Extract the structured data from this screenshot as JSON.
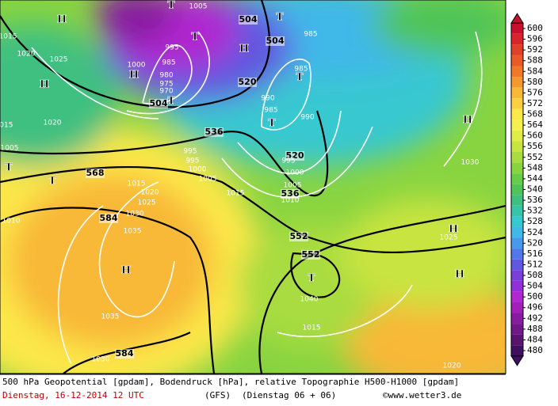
{
  "map": {
    "geopotential_labels": [
      "504",
      "504",
      "504",
      "520",
      "520",
      "536",
      "536",
      "552",
      "552",
      "568",
      "584",
      "584"
    ],
    "pressure_labels": [
      "1005",
      "995",
      "985",
      "990",
      "985",
      "990",
      "1000",
      "985",
      "980",
      "975",
      "970",
      "985",
      "1020",
      "1025",
      "1020",
      "1030",
      "995",
      "995",
      "1000",
      "1005",
      "995",
      "1000",
      "1005",
      "1010",
      "1015",
      "1015",
      "1020",
      "1025",
      "1030",
      "1035",
      "1035",
      "1030",
      "1010",
      "1015",
      "1040",
      "1025",
      "1020",
      "1015",
      "1015",
      "1005"
    ],
    "centers": [
      "H",
      "T",
      "T",
      "T",
      "H",
      "H",
      "T",
      "H",
      "T",
      "T",
      "T",
      "T",
      "H",
      "H",
      "H",
      "H",
      "T"
    ]
  },
  "colorbar": {
    "levels": [
      600,
      596,
      592,
      588,
      584,
      580,
      576,
      572,
      568,
      564,
      560,
      556,
      552,
      548,
      544,
      540,
      536,
      532,
      528,
      524,
      520,
      516,
      512,
      508,
      504,
      500,
      496,
      492,
      488,
      484,
      480
    ],
    "colors": [
      "#c8102e",
      "#d8242c",
      "#e0402a",
      "#e85a28",
      "#f07828",
      "#f49830",
      "#f8b838",
      "#fcd040",
      "#fce848",
      "#f4f050",
      "#e0ec48",
      "#c8e440",
      "#a8dc40",
      "#88d440",
      "#68cc48",
      "#50c458",
      "#40c080",
      "#38c4a8",
      "#38c8d0",
      "#40b8e8",
      "#4898ec",
      "#5078e8",
      "#6058e0",
      "#7840d8",
      "#9030d8",
      "#b028d0",
      "#a020b8",
      "#881ca0",
      "#701888",
      "#581470",
      "#401060"
    ]
  },
  "footer": {
    "line1": "500 hPa Geopotential [gpdam], Bodendruck [hPa], relative Topographie H500-H1000 [gpdam]",
    "date": "Dienstag, 16-12-2014  12 UTC",
    "model": "(GFS)",
    "run": "(Dienstag 06 + 06)",
    "credit": "©www.wetter3.de"
  }
}
